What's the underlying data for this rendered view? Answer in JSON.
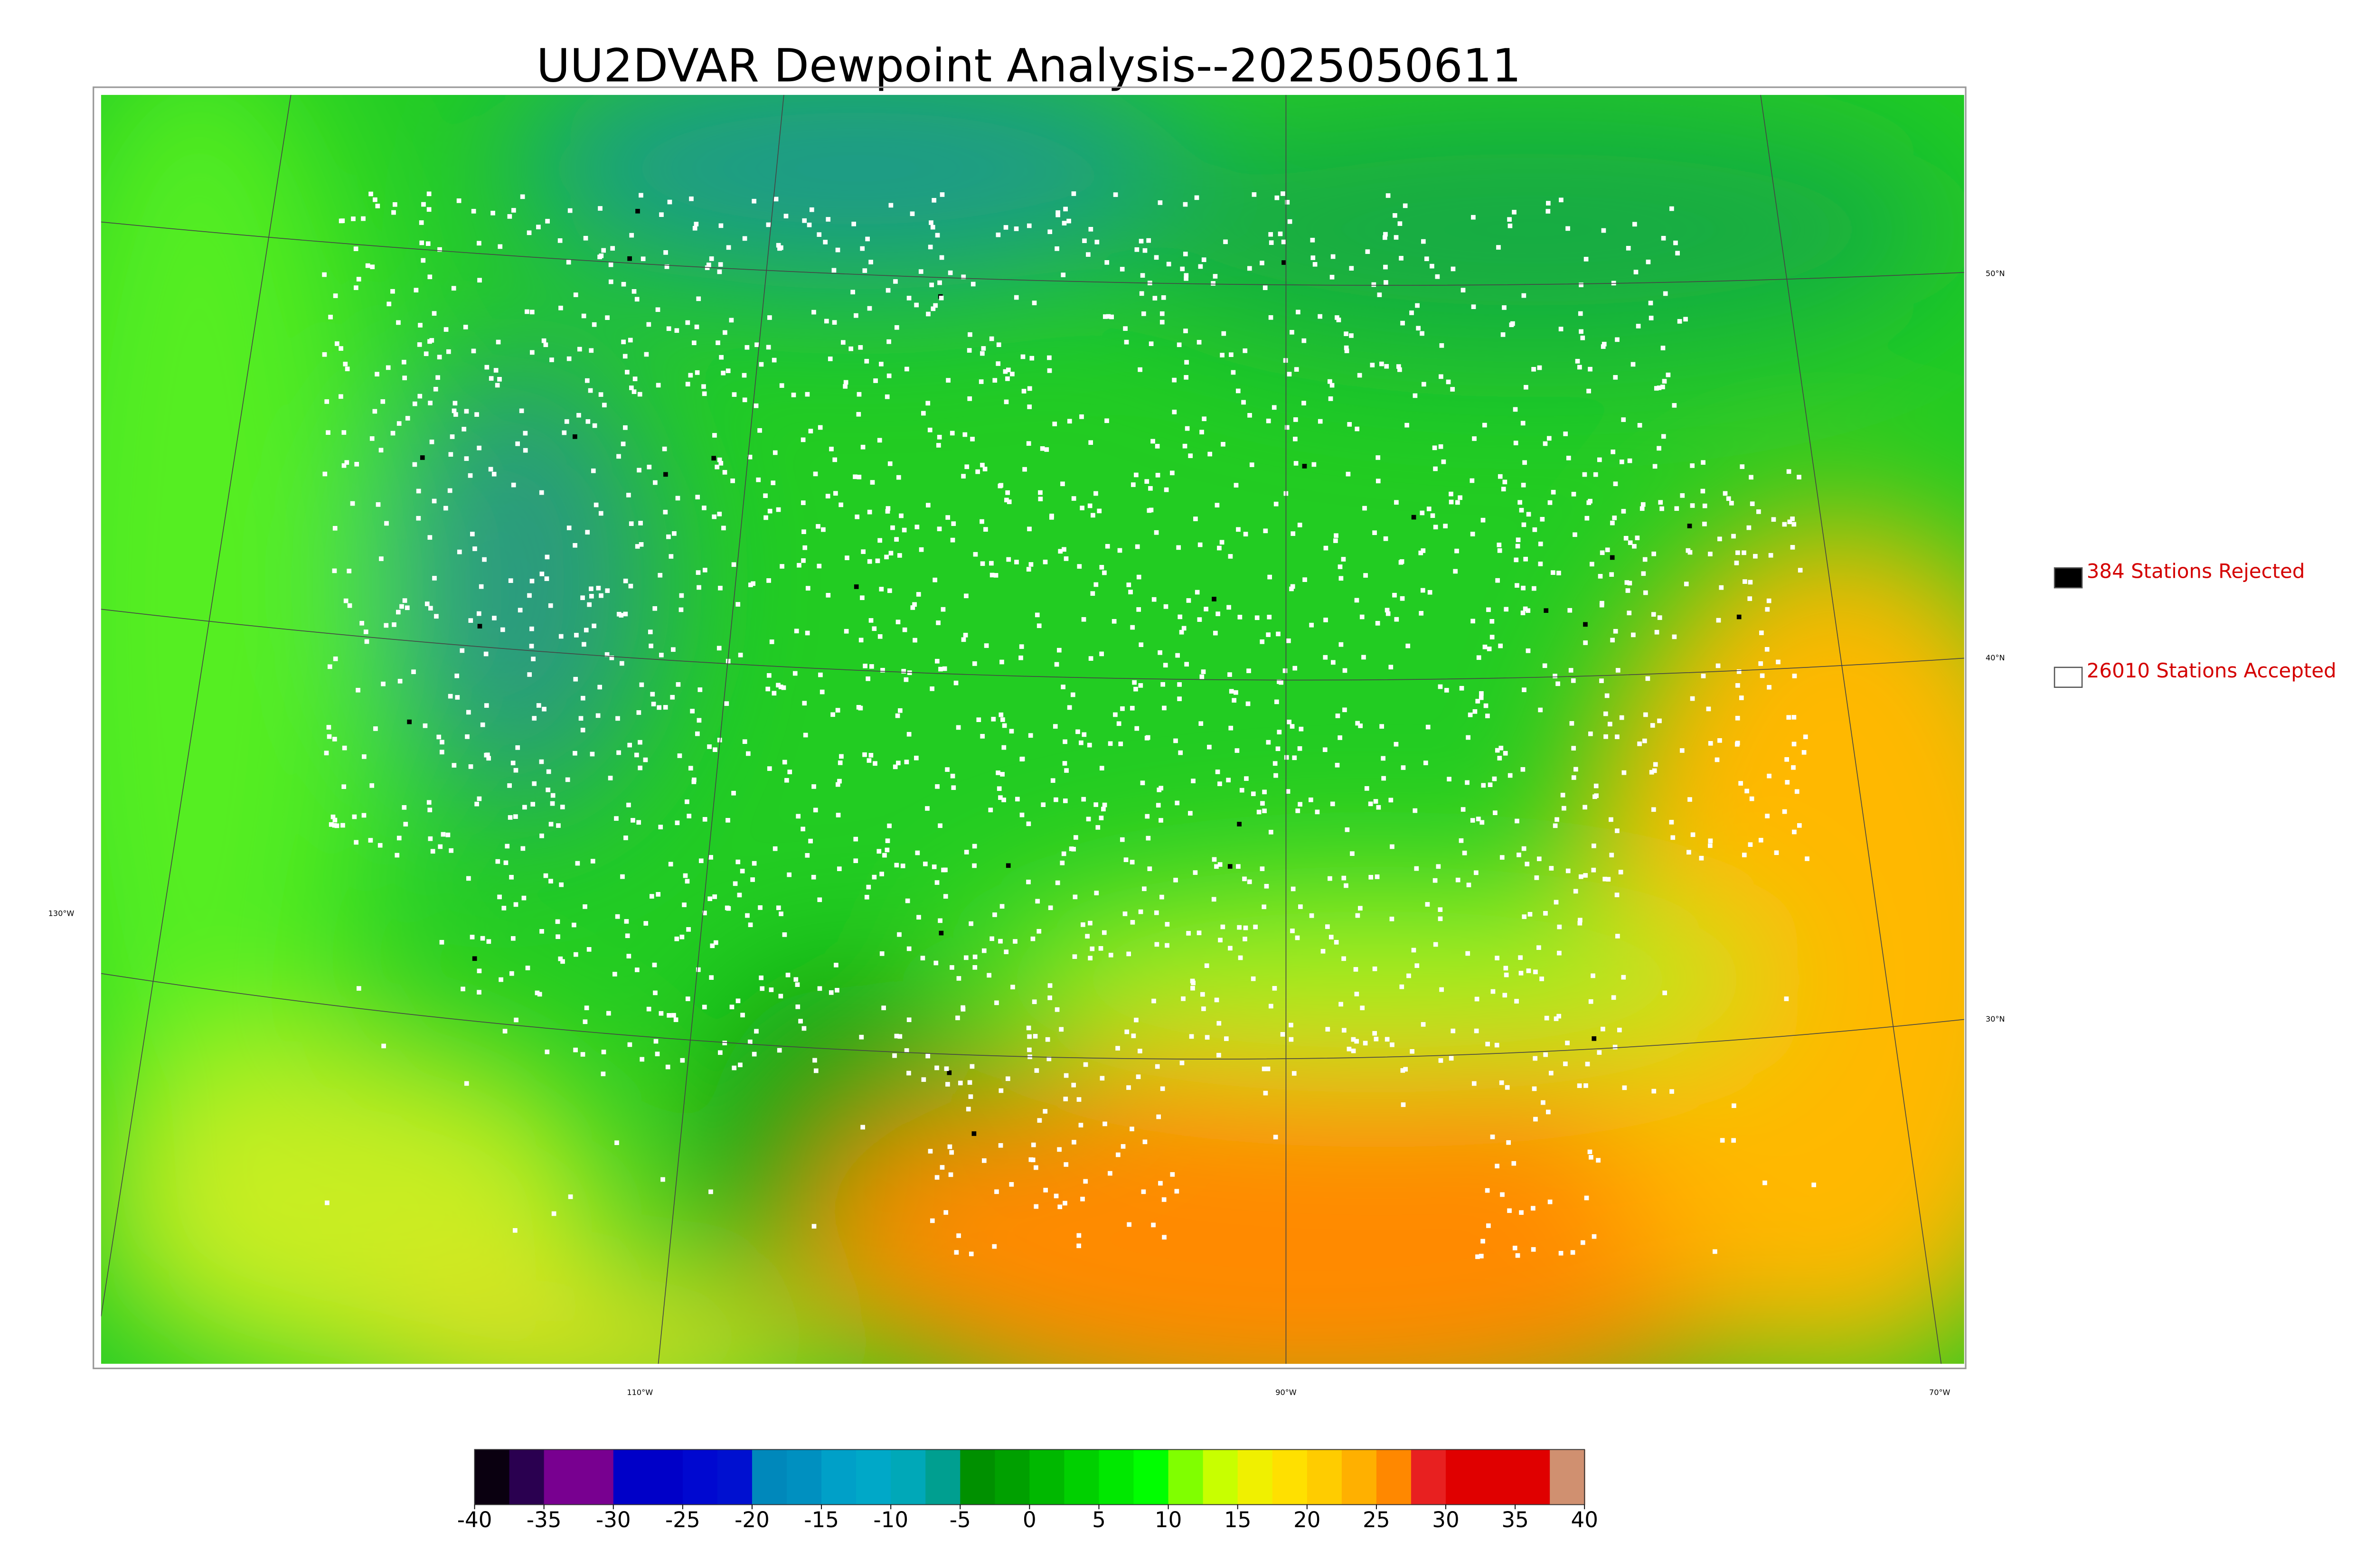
{
  "title": "UU2DVAR Dewpoint Analysis--2025050611",
  "graticule_labels": [
    "50°N",
    "40°N",
    "30°N",
    "130°W",
    "110°W",
    "90°W",
    "70°W"
  ],
  "legend": [
    {
      "label": "384 Stations Rejected",
      "color": "#000000"
    },
    {
      "label": "26010 Stations Accepted",
      "color": "#ffffff"
    }
  ],
  "colorbar": {
    "range": [
      -40,
      40
    ],
    "ticks": [
      -40,
      -35,
      -30,
      -25,
      -20,
      -15,
      -10,
      -5,
      0,
      5,
      10,
      15,
      20,
      25,
      30,
      35,
      40
    ],
    "colors": [
      "#0a0010",
      "#2a0050",
      "#780090",
      "#780090",
      "#0000c8",
      "#0000c8",
      "#0008d0",
      "#0010d0",
      "#0088bb",
      "#0090c0",
      "#00a0c8",
      "#00a8c8",
      "#00a8b8",
      "#009f90",
      "#009000",
      "#00a000",
      "#00b800",
      "#00d000",
      "#00e800",
      "#00ff00",
      "#80ff00",
      "#c8ff00",
      "#f0f000",
      "#ffe000",
      "#ffcc00",
      "#ffb000",
      "#ff8800",
      "#e82020",
      "#e00000",
      "#e00000",
      "#e00000",
      "#d09070"
    ]
  }
}
